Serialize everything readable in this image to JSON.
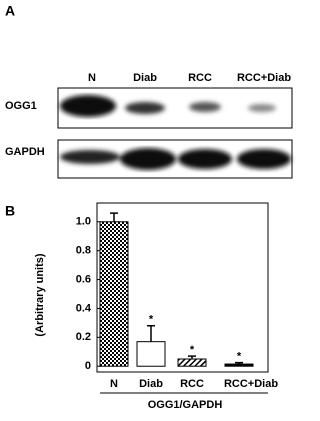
{
  "blot": {
    "panel_label": "A",
    "lanes": [
      "N",
      "Diab",
      "RCC",
      "RCC+Diab"
    ],
    "rows": [
      "OGG1",
      "GAPDH"
    ]
  },
  "chart_data": {
    "type": "bar",
    "panel_label": "B",
    "categories": [
      "N",
      "Diab",
      "RCC",
      "RCC+Diab"
    ],
    "values": [
      1.0,
      0.17,
      0.05,
      0.015
    ],
    "errors": [
      0.06,
      0.11,
      0.02,
      0.01
    ],
    "significance": [
      null,
      "*",
      "*",
      "*"
    ],
    "fills": [
      "checker",
      "white",
      "hatch",
      "black"
    ],
    "ylabel": "(Arbitrary units)",
    "xlabel": "OGG1/GAPDH",
    "ylim": [
      -0.04,
      1.13
    ],
    "yticks": [
      0,
      0.2,
      0.4,
      0.6,
      0.8,
      {
        "value": 1,
        "label": "1.0"
      }
    ]
  }
}
